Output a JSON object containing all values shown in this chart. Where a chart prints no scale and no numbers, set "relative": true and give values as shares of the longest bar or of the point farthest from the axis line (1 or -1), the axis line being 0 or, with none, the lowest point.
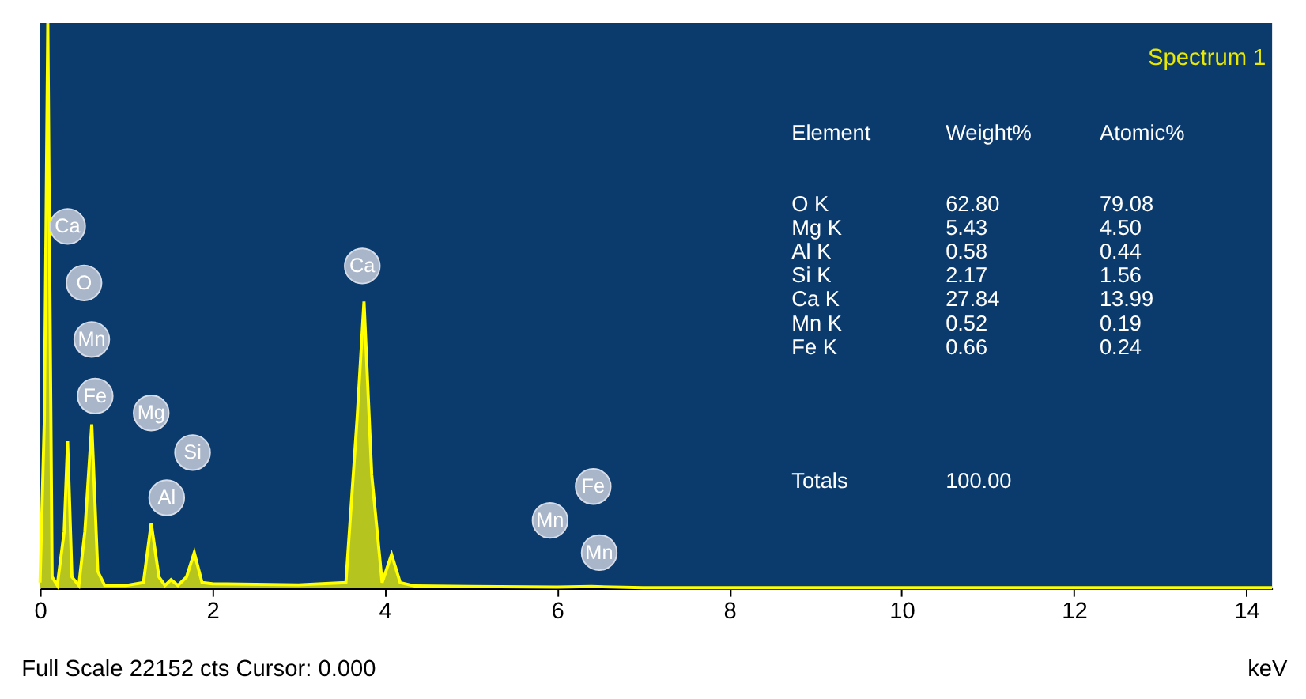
{
  "chart_data": {
    "type": "area",
    "title": "Spectrum 1",
    "xlabel": "keV",
    "relative": true,
    "xlim": [
      0,
      14.3
    ],
    "xticks": [
      0,
      2,
      4,
      6,
      8,
      10,
      12,
      14
    ],
    "grid": false,
    "series": [
      {
        "color": "#ffff00",
        "x": [
          0,
          0.05,
          0.09,
          0.14,
          0.2,
          0.28,
          0.32,
          0.37,
          0.45,
          0.52,
          0.6,
          0.67,
          0.75,
          1.0,
          1.2,
          1.29,
          1.38,
          1.45,
          1.52,
          1.6,
          1.7,
          1.79,
          1.88,
          2.0,
          3.0,
          3.55,
          3.68,
          3.76,
          3.85,
          3.97,
          4.08,
          4.18,
          4.35,
          5.0,
          6.0,
          6.4,
          7.0,
          14.3
        ],
        "values": [
          0.01,
          0.3,
          1.0,
          0.02,
          0.005,
          0.1,
          0.26,
          0.02,
          0.005,
          0.1,
          0.29,
          0.03,
          0.005,
          0.005,
          0.01,
          0.115,
          0.02,
          0.005,
          0.015,
          0.005,
          0.02,
          0.063,
          0.01,
          0.008,
          0.006,
          0.01,
          0.3,
          0.507,
          0.2,
          0.01,
          0.06,
          0.01,
          0.004,
          0.003,
          0.002,
          0.003,
          0.001,
          0.001
        ]
      }
    ],
    "annotations": [
      {
        "text": "Ca",
        "x": 0.32,
        "y": 0.64
      },
      {
        "text": "O",
        "x": 0.51,
        "y": 0.54
      },
      {
        "text": "Mn",
        "x": 0.6,
        "y": 0.44
      },
      {
        "text": "Fe",
        "x": 0.64,
        "y": 0.34
      },
      {
        "text": "Mg",
        "x": 1.29,
        "y": 0.31
      },
      {
        "text": "Si",
        "x": 1.77,
        "y": 0.24
      },
      {
        "text": "Al",
        "x": 1.47,
        "y": 0.16
      },
      {
        "text": "Ca",
        "x": 3.74,
        "y": 0.57
      },
      {
        "text": "Fe",
        "x": 6.42,
        "y": 0.18
      },
      {
        "text": "Mn",
        "x": 5.92,
        "y": 0.12
      },
      {
        "text": "Mn",
        "x": 6.49,
        "y": 0.063
      },
      "Full Scale 22152 cts Cursor: 0.000",
      "Element",
      "Weight%",
      "Atomic%",
      "O K",
      "62.80",
      "79.08",
      "Mg K",
      "5.43",
      "4.50",
      "Al K",
      "0.58",
      "0.44",
      "Si K",
      "2.17",
      "1.56",
      "Ca K",
      "27.84",
      "13.99",
      "Mn K",
      "0.52",
      "0.19",
      "Fe K",
      "0.66",
      "0.24",
      "Totals",
      "100.00"
    ]
  }
}
